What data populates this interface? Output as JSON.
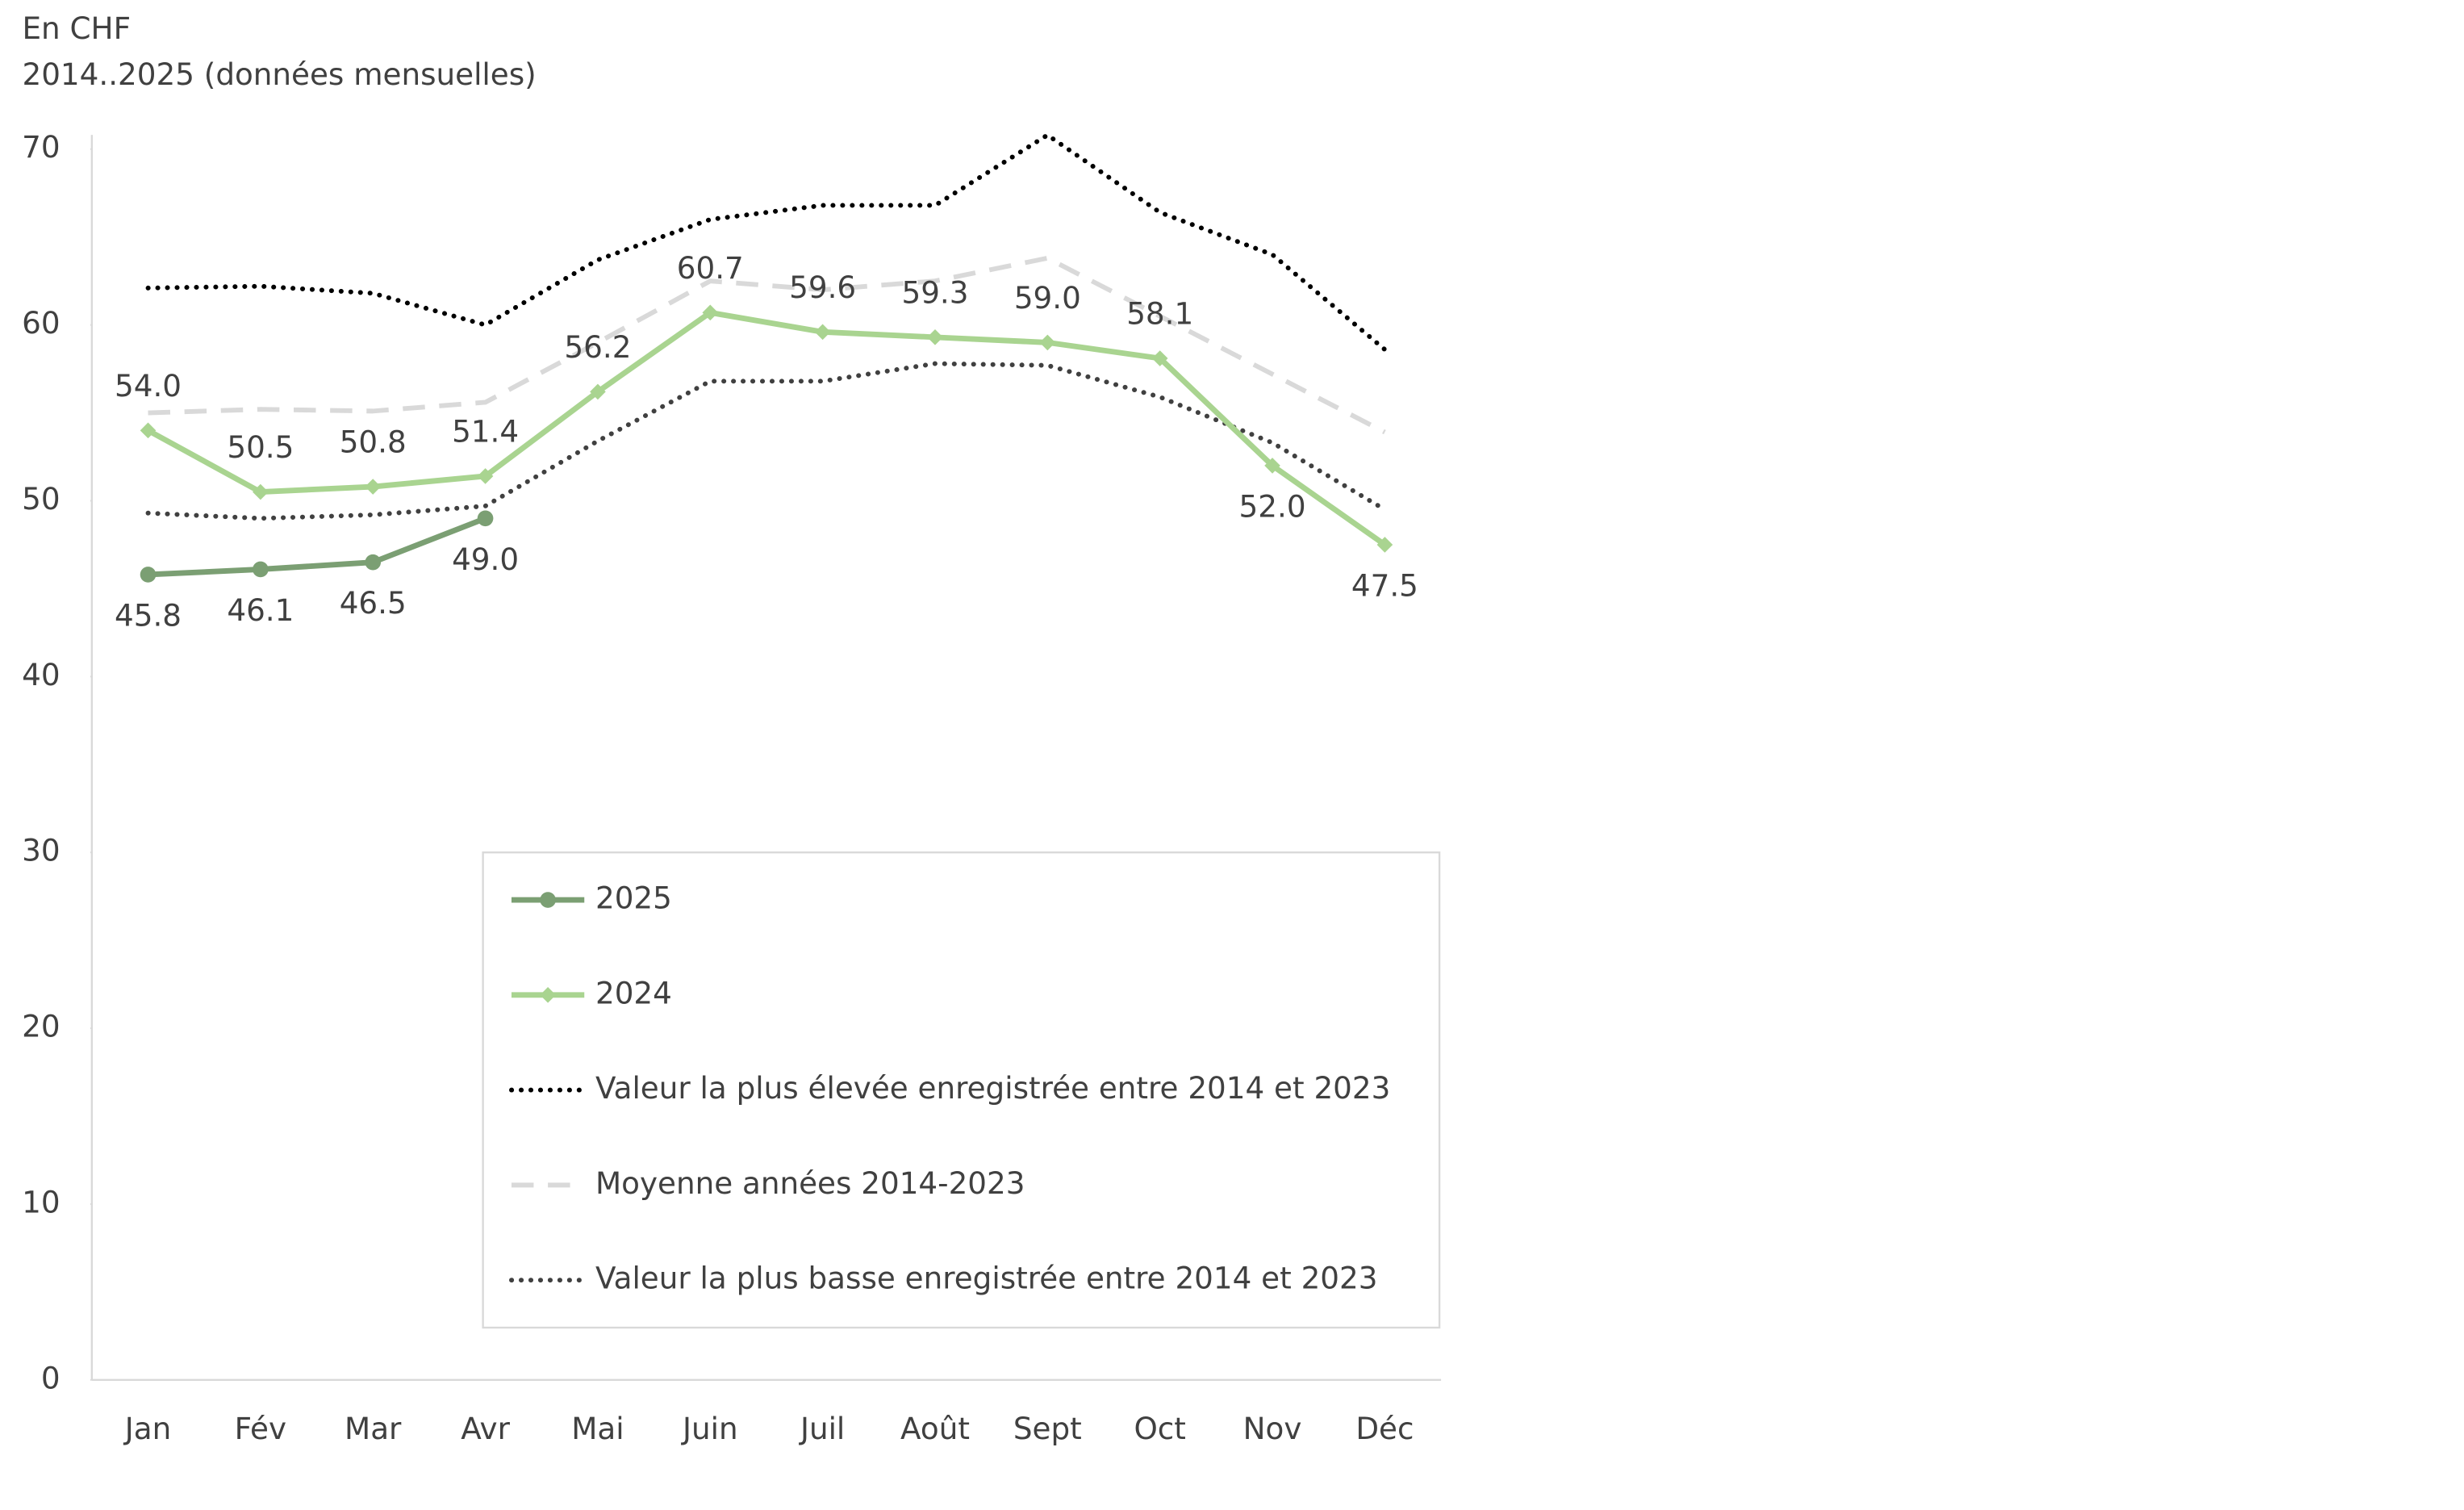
{
  "chart_data": {
    "type": "line",
    "subtitle_lines": [
      "En CHF",
      "2014..2025 (données mensuelles)"
    ],
    "categories": [
      "Jan",
      "Fév",
      "Mar",
      "Avr",
      "Mai",
      "Juin",
      "Juil",
      "Août",
      "Sept",
      "Oct",
      "Nov",
      "Déc"
    ],
    "ylim": [
      0,
      70
    ],
    "yticks": [
      0,
      10,
      20,
      30,
      40,
      50,
      60,
      70
    ],
    "grid": false,
    "series": [
      {
        "name": "2025",
        "color": "#7b9f73",
        "dash": "solid",
        "marker": "circle",
        "values": [
          45.8,
          46.1,
          46.5,
          49.0,
          null,
          null,
          null,
          null,
          null,
          null,
          null,
          null
        ],
        "value_labels": [
          "45.8",
          "46.1",
          "46.5",
          "49.0",
          null,
          null,
          null,
          null,
          null,
          null,
          null,
          null
        ]
      },
      {
        "name": "2024",
        "color": "#a9d490",
        "dash": "solid",
        "marker": "diamond",
        "values": [
          54.0,
          50.5,
          50.8,
          51.4,
          56.2,
          60.7,
          59.6,
          59.3,
          59.0,
          58.1,
          52.0,
          47.5
        ],
        "value_labels": [
          "54.0",
          "50.5",
          "50.8",
          "51.4",
          "56.2",
          "60.7",
          "59.6",
          "59.3",
          "59.0",
          "58.1",
          "52.0",
          "47.5"
        ]
      },
      {
        "name": "Valeur la plus élevée enregistrée entre 2014 et 2023",
        "color": "#000000",
        "dash": "dotted",
        "marker": "none",
        "values": [
          62.1,
          62.2,
          61.8,
          60.0,
          63.7,
          66.0,
          66.8,
          66.8,
          70.8,
          66.4,
          64.0,
          58.6
        ]
      },
      {
        "name": "Moyenne années 2014-2023",
        "color": "#d9d9d9",
        "dash": "dashed",
        "marker": "none",
        "values": [
          55.0,
          55.2,
          55.1,
          55.6,
          59.0,
          62.5,
          62.0,
          62.5,
          63.8,
          60.5,
          57.2,
          53.9
        ]
      },
      {
        "name": "Valeur la plus basse enregistrée entre 2014 et 2023",
        "color": "#404040",
        "dash": "dotted",
        "marker": "none",
        "values": [
          49.3,
          49.0,
          49.2,
          49.7,
          53.4,
          56.8,
          56.8,
          57.8,
          57.7,
          55.9,
          53.3,
          49.5
        ]
      }
    ]
  }
}
